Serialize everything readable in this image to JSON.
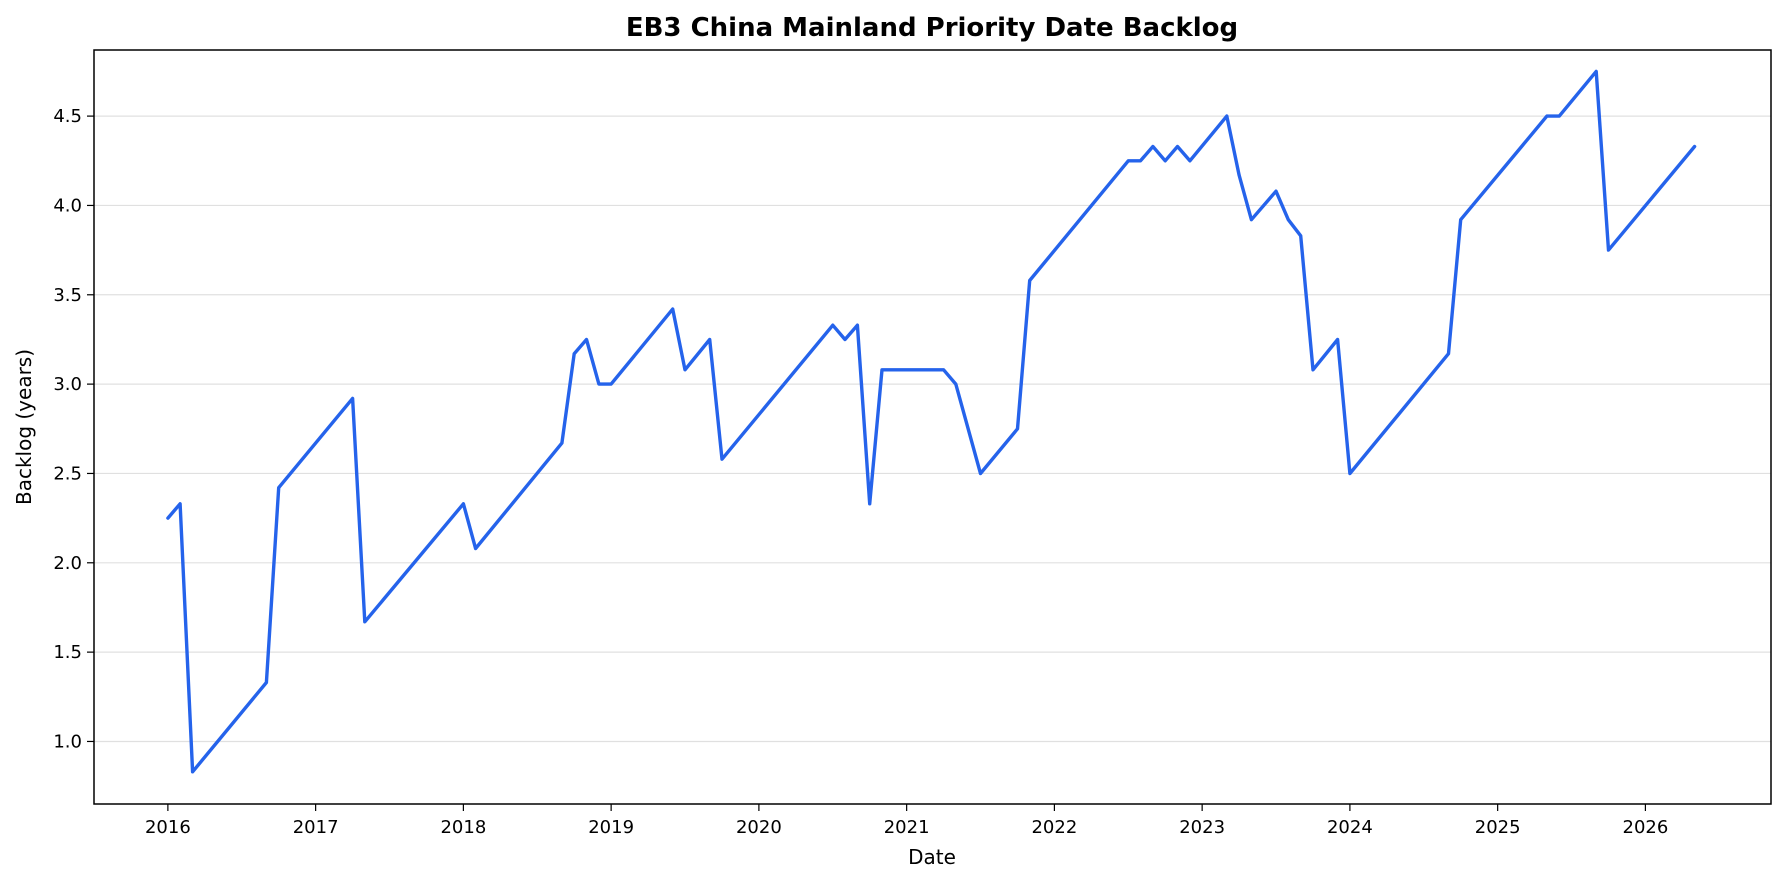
{
  "chart_data": {
    "type": "line",
    "title": "EB3 China Mainland Priority Date Backlog",
    "xlabel": "Date",
    "ylabel": "Backlog (years)",
    "xlim": [
      2015.5,
      2026.85
    ],
    "ylim": [
      0.65,
      4.87
    ],
    "x_ticks": [
      2016,
      2017,
      2018,
      2019,
      2020,
      2021,
      2022,
      2023,
      2024,
      2025,
      2026
    ],
    "y_ticks": [
      1.0,
      1.5,
      2.0,
      2.5,
      3.0,
      3.5,
      4.0,
      4.5
    ],
    "grid": "horizontal",
    "line_color": "#2563eb",
    "series": [
      {
        "name": "Backlog",
        "x": [
          2016.0,
          2016.083,
          2016.167,
          2016.667,
          2016.75,
          2017.25,
          2017.333,
          2018.0,
          2018.083,
          2018.667,
          2018.75,
          2018.833,
          2018.917,
          2019.0,
          2019.417,
          2019.5,
          2019.667,
          2019.75,
          2020.5,
          2020.583,
          2020.667,
          2020.75,
          2020.833,
          2021.25,
          2021.333,
          2021.5,
          2021.75,
          2021.833,
          2022.5,
          2022.583,
          2022.667,
          2022.75,
          2022.833,
          2022.917,
          2023.167,
          2023.25,
          2023.333,
          2023.5,
          2023.583,
          2023.667,
          2023.75,
          2023.917,
          2024.0,
          2024.667,
          2024.75,
          2025.333,
          2025.417,
          2025.667,
          2025.75,
          2026.333
        ],
        "y": [
          2.25,
          2.33,
          0.83,
          1.33,
          2.42,
          2.92,
          1.67,
          2.33,
          2.08,
          2.67,
          3.17,
          3.25,
          3.0,
          3.0,
          3.42,
          3.08,
          3.25,
          2.58,
          3.33,
          3.25,
          3.33,
          2.33,
          3.08,
          3.08,
          3.0,
          2.5,
          2.75,
          3.58,
          4.25,
          4.25,
          4.33,
          4.25,
          4.33,
          4.25,
          4.5,
          4.17,
          3.92,
          4.08,
          3.92,
          3.83,
          3.08,
          3.25,
          2.5,
          3.17,
          3.92,
          4.5,
          4.5,
          4.75,
          3.75,
          4.33
        ]
      }
    ]
  }
}
